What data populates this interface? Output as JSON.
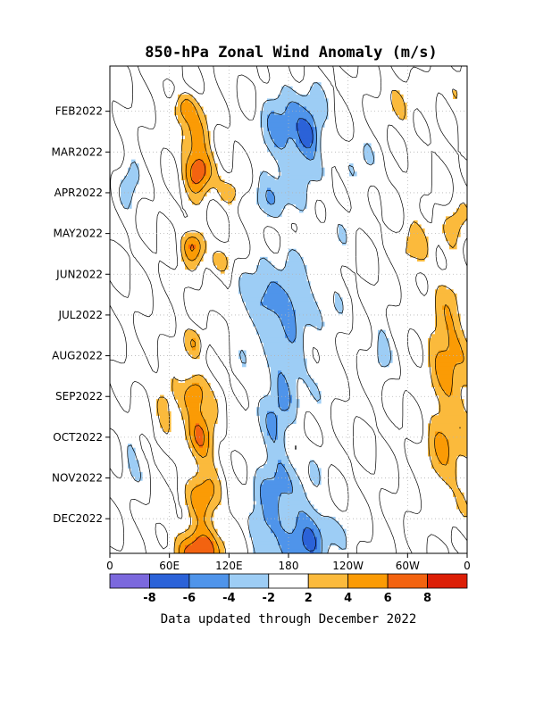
{
  "chart_data": {
    "type": "heatmap",
    "title": "850-hPa Zonal Wind Anomaly (m/s)",
    "xlabel": "",
    "ylabel": "",
    "x_tick_labels": [
      "0",
      "60E",
      "120E",
      "180",
      "120W",
      "60W",
      "0"
    ],
    "y_tick_labels": [
      "FEB2022",
      "MAR2022",
      "APR2022",
      "MAY2022",
      "JUN2022",
      "JUL2022",
      "AUG2022",
      "SEP2022",
      "OCT2022",
      "NOV2022",
      "DEC2022"
    ],
    "xlim": [
      0,
      360
    ],
    "ylim": [
      "JAN2022",
      "DEC2022"
    ],
    "colorbar": {
      "tick_labels": [
        "-8",
        "-6",
        "-4",
        "-2",
        "2",
        "4",
        "6",
        "8"
      ],
      "bins": [
        {
          "range": [
            -10,
            -8
          ],
          "color": "#7b68dd"
        },
        {
          "range": [
            -8,
            -6
          ],
          "color": "#2b62d8"
        },
        {
          "range": [
            -6,
            -4
          ],
          "color": "#4f94ea"
        },
        {
          "range": [
            -4,
            -2
          ],
          "color": "#9dcdf5"
        },
        {
          "range": [
            -2,
            2
          ],
          "color": "#ffffff"
        },
        {
          "range": [
            2,
            4
          ],
          "color": "#fbba3c"
        },
        {
          "range": [
            4,
            6
          ],
          "color": "#fb9b05"
        },
        {
          "range": [
            6,
            8
          ],
          "color": "#f36310"
        },
        {
          "range": [
            8,
            10
          ],
          "color": "#dc1e06"
        }
      ]
    },
    "anomaly_features": [
      {
        "sign": "easterly",
        "lon_range": [
          150,
          230
        ],
        "time": "FEB-APR2022",
        "peak": -7
      },
      {
        "sign": "easterly",
        "lon_range": [
          140,
          240
        ],
        "time": "JUN-JUL2022",
        "peak": -7
      },
      {
        "sign": "easterly",
        "lon_range": [
          140,
          250
        ],
        "time": "OCT-DEC2022",
        "peak": -7
      },
      {
        "sign": "westerly",
        "lon_range": [
          60,
          100
        ],
        "time": "FEB-APR2022",
        "peak": 7
      },
      {
        "sign": "westerly",
        "lon_range": [
          70,
          100
        ],
        "time": "MAY2022",
        "peak": 7
      },
      {
        "sign": "westerly",
        "lon_range": [
          70,
          100
        ],
        "time": "SEP2022",
        "peak": 7
      },
      {
        "sign": "westerly",
        "lon_range": [
          60,
          110
        ],
        "time": "OCT-DEC2022",
        "peak": 7
      },
      {
        "sign": "westerly",
        "lon_range": [
          300,
          360
        ],
        "time": "JUL-DEC2022",
        "peak": 4
      }
    ],
    "grid": true,
    "legend": "colorbar-bottom"
  },
  "footer_text": "Data updated through December 2022"
}
